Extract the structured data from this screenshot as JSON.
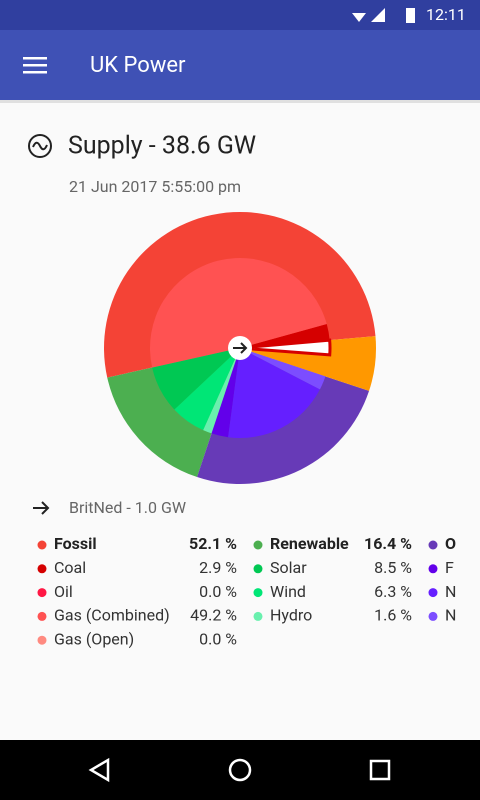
{
  "status_bar": {
    "time": "12:11"
  },
  "app_bar": {
    "title": "UK Power"
  },
  "supply": {
    "title": "Supply - 38.6 GW",
    "timestamp": "21 Jun 2017 5:55:00 pm"
  },
  "interconnector": {
    "label": "BritNed - 1.0 GW",
    "share": 2.6
  },
  "pie": {
    "unlabeled_slices": [
      {
        "value": 6.5,
        "color": "#ff9800"
      }
    ]
  },
  "legend": {
    "groups": [
      {
        "label": "Fossil",
        "value": 52.1,
        "value_label": "52.1 %",
        "color": "#f44336",
        "items": [
          {
            "label": "Coal",
            "value": 2.9,
            "value_label": "2.9 %",
            "color": "#d50000"
          },
          {
            "label": "Oil",
            "value": 0.0,
            "value_label": "0.0 %",
            "color": "#ff1744"
          },
          {
            "label": "Gas (Combined)",
            "value": 49.2,
            "value_label": "49.2 %",
            "color": "#ff5252"
          },
          {
            "label": "Gas (Open)",
            "value": 0.0,
            "value_label": "0.0 %",
            "color": "#ff8a80"
          }
        ]
      },
      {
        "label": "Renewable",
        "value": 16.4,
        "value_label": "16.4 %",
        "color": "#4caf50",
        "items": [
          {
            "label": "Solar",
            "value": 8.5,
            "value_label": "8.5 %",
            "color": "#00c853"
          },
          {
            "label": "Wind",
            "value": 6.3,
            "value_label": "6.3 %",
            "color": "#00e676"
          },
          {
            "label": "Hydro",
            "value": 1.6,
            "value_label": "1.6 %",
            "color": "#69f0ae"
          }
        ]
      },
      {
        "label": "O",
        "value": 25.0,
        "color": "#673ab7",
        "items": [
          {
            "label": "F",
            "value": 3.0,
            "color": "#6200ea"
          },
          {
            "label": "N",
            "value": 19.5,
            "color": "#651fff"
          },
          {
            "label": "N",
            "value": 2.5,
            "color": "#7c4dff"
          }
        ]
      }
    ]
  }
}
